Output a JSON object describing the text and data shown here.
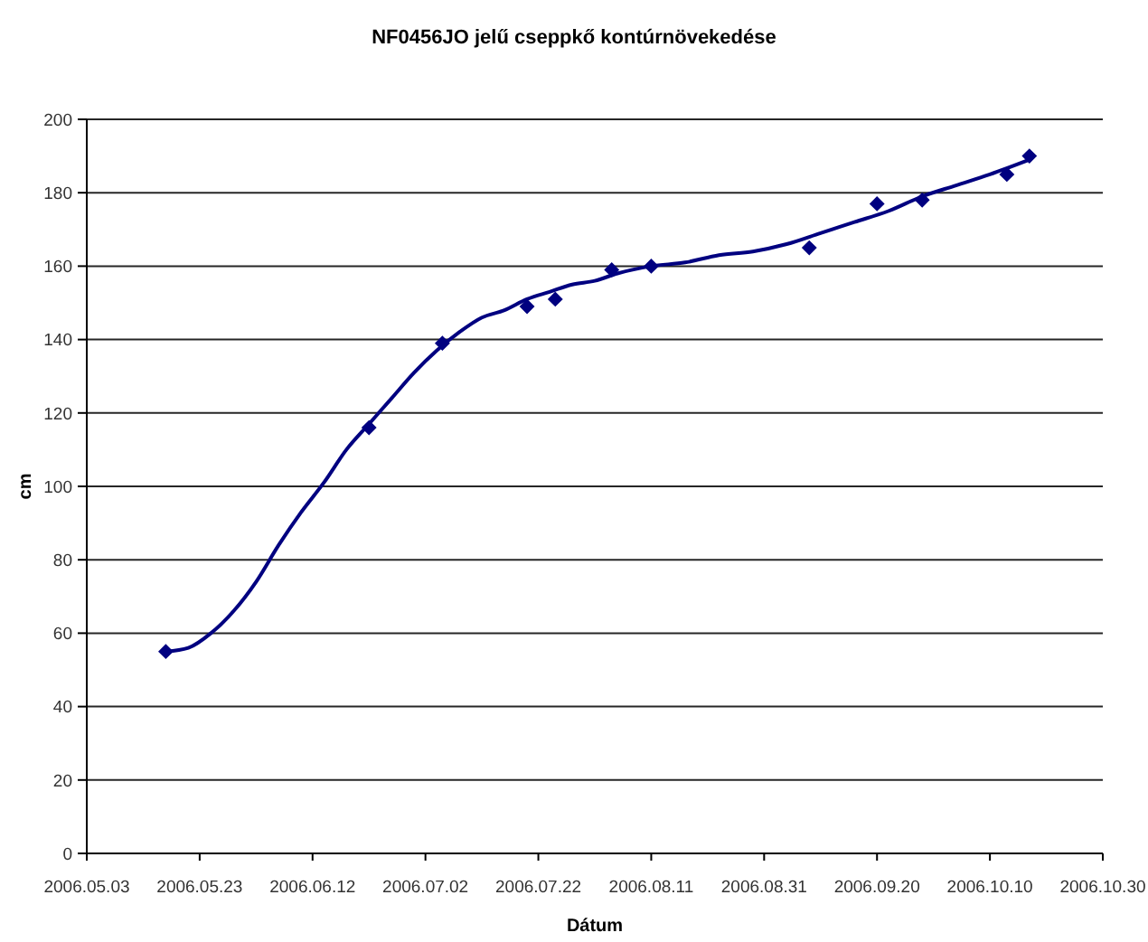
{
  "chart_data": {
    "type": "scatter",
    "title": "NF0456JO jelű cseppkő kontúrnövekedése",
    "xlabel": "Dátum",
    "ylabel": "cm",
    "x": [
      "2006-05-17",
      "2006-06-22",
      "2006-07-05",
      "2006-07-20",
      "2006-07-25",
      "2006-08-04",
      "2006-08-11",
      "2006-09-08",
      "2006-09-20",
      "2006-09-28",
      "2006-10-13",
      "2006-10-17"
    ],
    "series": [
      {
        "color": "#000080",
        "marker": "diamond",
        "values": [
          55,
          116,
          139,
          149,
          151,
          159,
          160,
          165,
          177,
          178,
          185,
          190
        ]
      },
      {
        "type": "line",
        "color": "#000080",
        "marker": "none",
        "x": [
          "2006-05-17",
          "2006-05-21",
          "2006-05-25",
          "2006-05-29",
          "2006-06-02",
          "2006-06-06",
          "2006-06-10",
          "2006-06-14",
          "2006-06-18",
          "2006-06-22",
          "2006-06-26",
          "2006-06-30",
          "2006-07-04",
          "2006-07-08",
          "2006-07-12",
          "2006-07-16",
          "2006-07-20",
          "2006-07-24",
          "2006-07-28",
          "2006-08-01",
          "2006-08-05",
          "2006-08-11",
          "2006-08-17",
          "2006-08-23",
          "2006-08-29",
          "2006-09-04",
          "2006-09-10",
          "2006-09-16",
          "2006-09-22",
          "2006-09-28",
          "2006-10-04",
          "2006-10-10",
          "2006-10-17"
        ],
        "values": [
          55,
          56,
          60,
          66,
          74,
          84,
          93,
          101,
          110,
          117,
          124,
          131,
          137,
          142,
          146,
          148,
          151,
          153,
          155,
          156,
          158,
          160,
          161,
          163,
          164,
          166,
          169,
          172,
          175,
          179,
          182,
          185,
          189
        ]
      }
    ],
    "xlim": [
      "2006-05-03",
      "2006-10-30"
    ],
    "xticks": [
      {
        "value": "2006-05-03",
        "label": "2006.05.03"
      },
      {
        "value": "2006-05-23",
        "label": "2006.05.23"
      },
      {
        "value": "2006-06-12",
        "label": "2006.06.12"
      },
      {
        "value": "2006-07-02",
        "label": "2006.07.02"
      },
      {
        "value": "2006-07-22",
        "label": "2006.07.22"
      },
      {
        "value": "2006-08-11",
        "label": "2006.08.11"
      },
      {
        "value": "2006-08-31",
        "label": "2006.08.31"
      },
      {
        "value": "2006-09-20",
        "label": "2006.09.20"
      },
      {
        "value": "2006-10-10",
        "label": "2006.10.10"
      },
      {
        "value": "2006-10-30",
        "label": "2006.10.30"
      }
    ],
    "ylim": [
      0,
      200
    ],
    "yticks": [
      0,
      20,
      40,
      60,
      80,
      100,
      120,
      140,
      160,
      180,
      200
    ],
    "grid": "y"
  }
}
